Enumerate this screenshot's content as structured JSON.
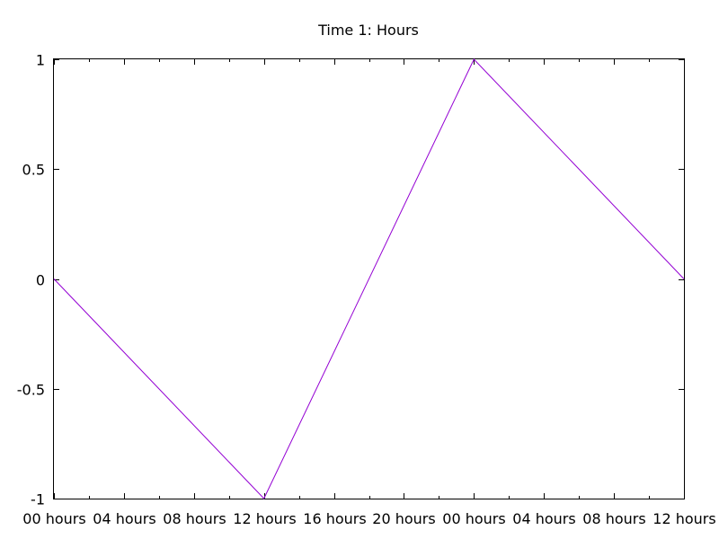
{
  "chart_data": {
    "type": "line",
    "title": "Time 1: Hours",
    "xlabel": "",
    "ylabel": "",
    "x_tick_labels": [
      "00 hours",
      "04 hours",
      "08 hours",
      "12 hours",
      "16 hours",
      "20 hours",
      "00 hours",
      "04 hours",
      "08 hours",
      "12 hours"
    ],
    "y_tick_labels": [
      "1",
      "0.5",
      "0",
      "-0.5",
      "-1"
    ],
    "y_tick_values": [
      1,
      0.5,
      0,
      -0.5,
      -1
    ],
    "xlim_hours": [
      0,
      36
    ],
    "ylim": [
      -1,
      1
    ],
    "grid": false,
    "series": [
      {
        "color": "#9400d3",
        "x_hours": [
          0,
          12,
          24,
          36
        ],
        "y": [
          0,
          -1,
          1,
          0
        ]
      }
    ]
  }
}
